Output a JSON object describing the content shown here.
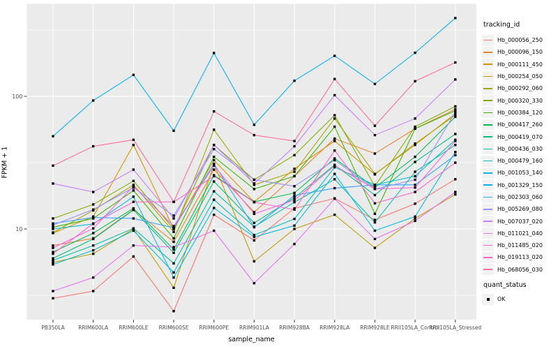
{
  "chart_data": {
    "type": "line",
    "title": "",
    "xlabel": "sample_name",
    "ylabel": "FPKM + 1",
    "x_categories": [
      "PB350LA",
      "RRIM600LA",
      "RRIM600LE",
      "RRIM600SE",
      "RRIM600PE",
      "RRIM901LA",
      "RRIM928BA",
      "RRIM928LA",
      "RRIM928LE",
      "RRII105LA_Control",
      "RRII105LA_Stressed"
    ],
    "y_scale": "log10",
    "y_ticks": [
      10,
      100
    ],
    "y_minor_ticks": [
      3.162,
      31.62,
      316.2
    ],
    "ylim": [
      2.05,
      500
    ],
    "grid": true,
    "legend_position": "right",
    "legend_title": "tracking_id",
    "legend2_title": "quant_status",
    "legend2_items": [
      "OK"
    ],
    "panel_bg": "#EBEBEB",
    "grid_color": "#FFFFFF",
    "tick_label_color": "#4D4D4D",
    "point_color": "#000000",
    "series": [
      {
        "name": "Hb_000056_250",
        "color": "#F8766D",
        "values": [
          3.0,
          3.4,
          6.2,
          2.4,
          12.8,
          8.2,
          14.3,
          17,
          11.7,
          15.5,
          23.7
        ]
      },
      {
        "name": "Hb_000096_150",
        "color": "#EA8331",
        "values": [
          7.5,
          8.5,
          14,
          8.0,
          28,
          13.4,
          25,
          48,
          37,
          57,
          80
        ]
      },
      {
        "name": "Hb_000111_450",
        "color": "#D89000",
        "values": [
          9.3,
          12.4,
          43,
          10,
          33,
          16,
          28.4,
          46,
          25.8,
          44,
          72
        ]
      },
      {
        "name": "Hb_000254_050",
        "color": "#C09B00",
        "values": [
          5.6,
          6.5,
          10,
          3.6,
          30.8,
          5.7,
          10,
          12.8,
          7.2,
          12,
          18.2
        ]
      },
      {
        "name": "Hb_000292_060",
        "color": "#A3A500",
        "values": [
          9.4,
          13.8,
          21.5,
          9.5,
          56,
          21.5,
          27,
          68,
          26,
          43,
          74
        ]
      },
      {
        "name": "Hb_000320_330",
        "color": "#7CAE00",
        "values": [
          12,
          15.3,
          23,
          10,
          43,
          23.5,
          36,
          72,
          21,
          59,
          84
        ]
      },
      {
        "name": "Hb_000384_120",
        "color": "#39B600",
        "values": [
          10.3,
          12,
          19.5,
          8.5,
          35,
          20,
          25,
          59,
          13,
          57,
          78
        ]
      },
      {
        "name": "Hb_000417_260",
        "color": "#00BB4E",
        "values": [
          6.7,
          9.3,
          14.3,
          7.0,
          25.4,
          16,
          18.7,
          34,
          20.5,
          35,
          70
        ]
      },
      {
        "name": "Hb_000419_070",
        "color": "#00BF7D",
        "values": [
          6.0,
          8.4,
          13.9,
          6.6,
          22.8,
          11.1,
          17.2,
          30.4,
          18,
          32,
          52
        ]
      },
      {
        "name": "Hb_000436_030",
        "color": "#00C1A3",
        "values": [
          5.8,
          7.5,
          10.1,
          5.5,
          19.2,
          10.4,
          15.9,
          23.7,
          11.2,
          27,
          43
        ]
      },
      {
        "name": "Hb_000479_160",
        "color": "#00BFC4",
        "values": [
          5.4,
          6.9,
          9.7,
          4.7,
          16.6,
          9.0,
          11.9,
          29.2,
          21.5,
          25,
          47
        ]
      },
      {
        "name": "Hb_001053_140",
        "color": "#00BAE0",
        "values": [
          10,
          10.9,
          17.5,
          4.3,
          14.4,
          8.7,
          10.6,
          26,
          9.7,
          12.4,
          38
        ]
      },
      {
        "name": "Hb_001329_150",
        "color": "#00B0F6",
        "values": [
          50,
          93,
          145,
          55,
          212,
          61,
          131,
          202,
          124,
          213,
          389
        ]
      },
      {
        "name": "Hb_002303_060",
        "color": "#35A2FF",
        "values": [
          11,
          12.2,
          12,
          10.2,
          31,
          10.3,
          17.9,
          20.3,
          21.5,
          21.5,
          36
        ]
      },
      {
        "name": "Hb_005269_080",
        "color": "#9590FF",
        "values": [
          10.7,
          14,
          20.5,
          12.6,
          40,
          23.5,
          21,
          33,
          20,
          23.5,
          76
        ]
      },
      {
        "name": "Hb_007037_020",
        "color": "#C77CFF",
        "values": [
          22,
          19,
          28,
          12,
          43,
          22,
          42,
          102,
          51,
          68,
          134
        ]
      },
      {
        "name": "Hb_011021_040",
        "color": "#E76BF3",
        "values": [
          3.4,
          4.3,
          7.5,
          7.3,
          9.7,
          3.9,
          7.7,
          16.9,
          8.4,
          11.5,
          19
        ]
      },
      {
        "name": "Hb_011485_020",
        "color": "#FA62DB",
        "values": [
          7.2,
          10.1,
          21,
          10.5,
          30,
          13,
          16.5,
          30,
          20,
          20.5,
          46
        ]
      },
      {
        "name": "Hb_019113_020",
        "color": "#FF61CC",
        "values": [
          6.5,
          11,
          16,
          16,
          25,
          15.9,
          14,
          39,
          15.6,
          19,
          31.6
        ]
      },
      {
        "name": "Hb_068056_030",
        "color": "#FF6A98",
        "values": [
          30,
          42,
          47,
          16,
          77,
          51,
          46,
          135,
          60,
          130,
          180
        ]
      }
    ]
  }
}
